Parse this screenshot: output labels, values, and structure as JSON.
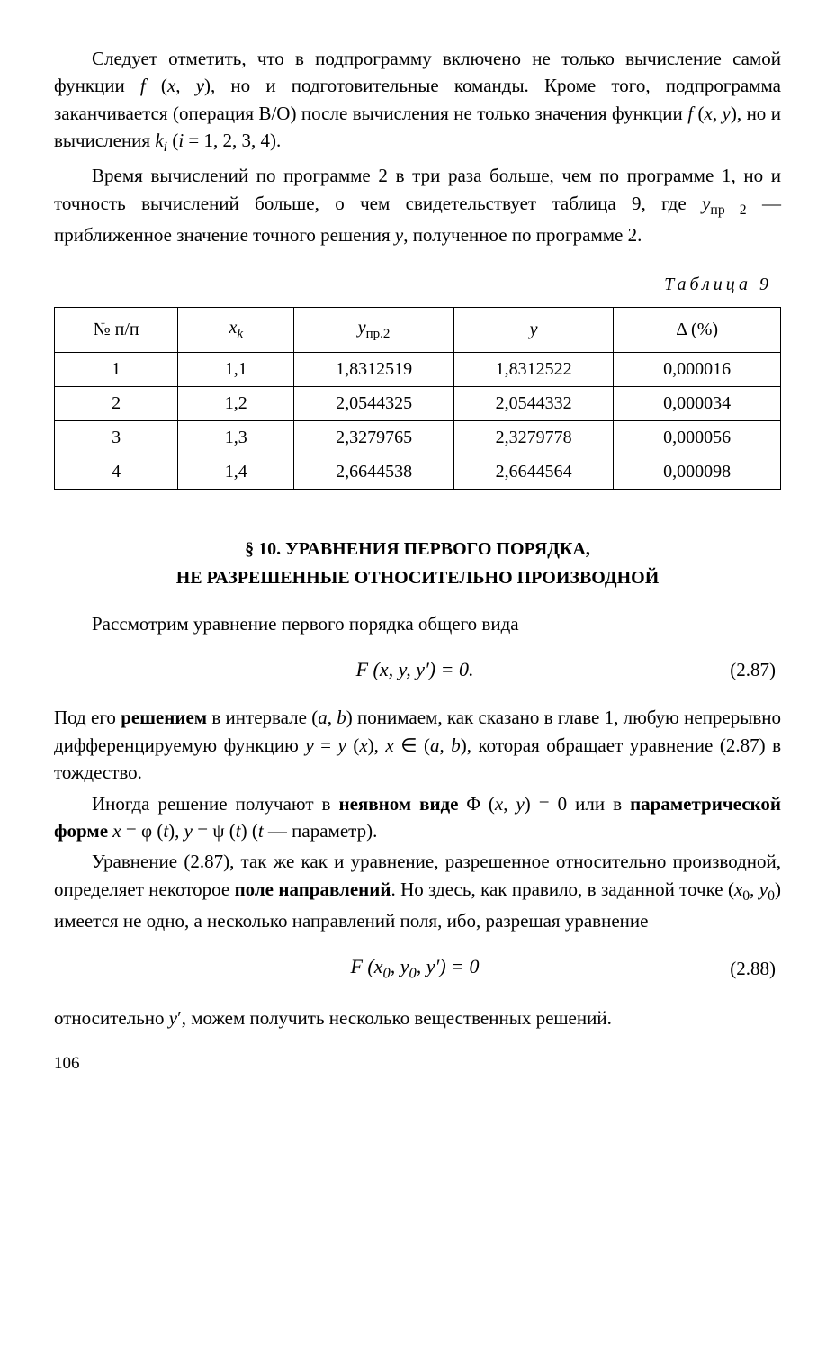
{
  "paragraph1_html": "Следует отметить, что в подпрограмму включено не только вычисление самой функции <span class=\"ital\">f</span> (<span class=\"ital\">x</span>, <span class=\"ital\">y</span>), но и подготовительные команды. Кроме того, подпрограмма заканчивается (операция В/О) после вычисления не только значения функции <span class=\"ital\">f</span> (<span class=\"ital\">x</span>, <span class=\"ital\">y</span>), но и вычисления <span class=\"ital\">k<span class=\"sub\">i</span></span> (<span class=\"ital\">i</span> = 1, 2, 3, 4).",
  "paragraph2_html": "Время вычислений по программе 2 в три раза больше, чем по программе 1, но и точность вычислений больше, о чем свидетельствует таблица 9, где <span class=\"ital\">y</span><span class=\"sub\">пр 2</span> — приближенное значение точного решения <span class=\"ital\">y</span>, полученное по программе 2.",
  "table_label": "Таблица 9",
  "table": {
    "headers": {
      "col1": "№ п/п",
      "col2_html": "<span class=\"ital\">x<span class=\"sub\">k</span></span>",
      "col3_html": "<span class=\"ital\">y</span><span class=\"sub\">пр.2</span>",
      "col4_html": "<span class=\"ital\">y</span>",
      "col5": "Δ (%)"
    },
    "rows": [
      {
        "n": "1",
        "xk": "1,1",
        "yp": "1,8312519",
        "y": "1,8312522",
        "d": "0,000016"
      },
      {
        "n": "2",
        "xk": "1,2",
        "yp": "2,0544325",
        "y": "2,0544332",
        "d": "0,000034"
      },
      {
        "n": "3",
        "xk": "1,3",
        "yp": "2,3279765",
        "y": "2,3279778",
        "d": "0,000056"
      },
      {
        "n": "4",
        "xk": "1,4",
        "yp": "2,6644538",
        "y": "2,6644564",
        "d": "0,000098"
      }
    ]
  },
  "section_heading_html": "§ 10. УРАВНЕНИЯ ПЕРВОГО ПОРЯДКА,<br>НЕ РАЗРЕШЕННЫЕ ОТНОСИТЕЛЬНО ПРОИЗВОДНОЙ",
  "paragraph3": "Рассмотрим уравнение первого порядка общего вида",
  "equation1": {
    "formula_html": "<span class=\"ital\">F</span> (<span class=\"ital\">x</span>, <span class=\"ital\">y</span>, <span class=\"ital\">y</span>′) = 0.",
    "number": "(2.87)"
  },
  "paragraph4_html": "Под его <span class=\"bold\">решением</span> в интервале (<span class=\"ital\">a</span>, <span class=\"ital\">b</span>) понимаем, как сказано в главе 1, любую непрерывно дифференцируемую функцию <span class=\"ital\">y</span> = <span class=\"ital\">y</span> (<span class=\"ital\">x</span>), <span class=\"ital\">x</span> ∈ (<span class=\"ital\">a</span>, <span class=\"ital\">b</span>), которая обращает уравнение (2.87) в тождество.",
  "paragraph5_html": "Иногда решение получают в <span class=\"bold\">неявном виде</span> Φ (<span class=\"ital\">x</span>, <span class=\"ital\">y</span>) = 0 или в <span class=\"bold\">параметрической форме</span> <span class=\"ital\">x</span> = φ (<span class=\"ital\">t</span>), <span class=\"ital\">y</span> = ψ (<span class=\"ital\">t</span>) (<span class=\"ital\">t</span> — параметр).",
  "paragraph6_html": "Уравнение (2.87), так же как и уравнение, разрешенное относительно производной, определяет некоторое <span class=\"bold\">поле направлений</span>. Но здесь, как правило, в заданной точке (<span class=\"ital\">x</span><span class=\"sub\">0</span>, <span class=\"ital\">y</span><span class=\"sub\">0</span>) имеется не одно, а несколько направлений поля, ибо, разрешая уравнение",
  "equation2": {
    "formula_html": "<span class=\"ital\">F</span> (<span class=\"ital\">x</span><span class=\"sub\">0</span>, <span class=\"ital\">y</span><span class=\"sub\">0</span>, <span class=\"ital\">y</span>′) = 0",
    "number": "(2.88)"
  },
  "paragraph7_html": "относительно <span class=\"ital\">y</span>′, можем получить несколько вещественных решений.",
  "page_number": "106"
}
